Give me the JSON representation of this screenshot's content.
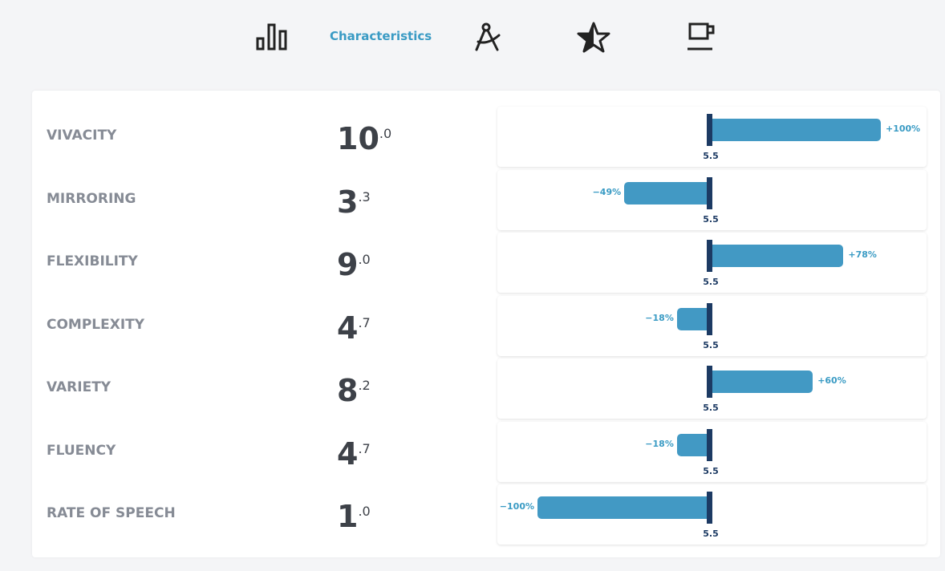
{
  "nav": {
    "active_tab": "Characteristics"
  },
  "baseline": "5.5",
  "rows": [
    {
      "label": "VIVACITY",
      "whole": "10",
      "fraction": ".0",
      "change": 100,
      "change_label": "+100%"
    },
    {
      "label": "MIRRORING",
      "whole": "3",
      "fraction": ".3",
      "change": -49,
      "change_label": "−49%"
    },
    {
      "label": "FLEXIBILITY",
      "whole": "9",
      "fraction": ".0",
      "change": 78,
      "change_label": "+78%"
    },
    {
      "label": "COMPLEXITY",
      "whole": "4",
      "fraction": ".7",
      "change": -18,
      "change_label": "−18%"
    },
    {
      "label": "VARIETY",
      "whole": "8",
      "fraction": ".2",
      "change": 60,
      "change_label": "+60%"
    },
    {
      "label": "FLUENCY",
      "whole": "4",
      "fraction": ".7",
      "change": -18,
      "change_label": "−18%"
    },
    {
      "label": "RATE OF SPEECH",
      "whole": "1",
      "fraction": ".0",
      "change": -100,
      "change_label": "−100%"
    }
  ]
}
